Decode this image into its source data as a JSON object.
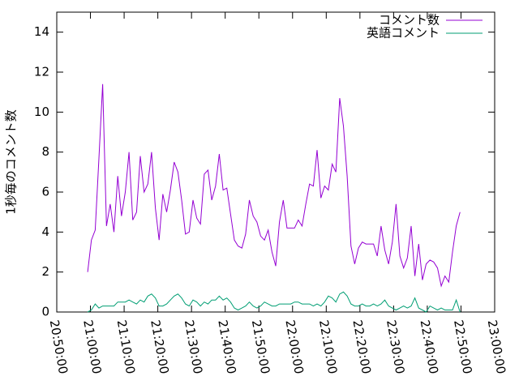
{
  "chart_data": {
    "type": "line",
    "y_label": "1秒毎のコメント数",
    "x": [
      "20:59:10",
      "21:00:17",
      "21:01:24",
      "21:02:31",
      "21:03:38",
      "21:04:45",
      "21:05:52",
      "21:06:59",
      "21:08:06",
      "21:09:13",
      "21:10:20",
      "21:11:27",
      "21:12:34",
      "21:13:41",
      "21:14:48",
      "21:15:55",
      "21:17:02",
      "21:18:09",
      "21:19:16",
      "21:20:23",
      "21:21:30",
      "21:22:37",
      "21:23:44",
      "21:24:51",
      "21:25:58",
      "21:27:05",
      "21:28:12",
      "21:29:19",
      "21:30:26",
      "21:31:33",
      "21:32:40",
      "21:33:47",
      "21:34:54",
      "21:36:01",
      "21:37:08",
      "21:38:15",
      "21:39:22",
      "21:40:29",
      "21:41:36",
      "21:42:43",
      "21:43:50",
      "21:44:57",
      "21:46:04",
      "21:47:11",
      "21:48:18",
      "21:49:25",
      "21:50:32",
      "21:51:39",
      "21:52:46",
      "21:53:53",
      "21:55:00",
      "21:56:07",
      "21:57:14",
      "21:58:21",
      "21:59:28",
      "22:00:35",
      "22:01:42",
      "22:02:49",
      "22:03:56",
      "22:05:03",
      "22:06:10",
      "22:07:17",
      "22:08:24",
      "22:09:31",
      "22:10:38",
      "22:11:45",
      "22:12:52",
      "22:13:59",
      "22:15:06",
      "22:16:13",
      "22:17:20",
      "22:18:27",
      "22:19:34",
      "22:20:41",
      "22:21:48",
      "22:22:55",
      "22:24:02",
      "22:25:09",
      "22:26:16",
      "22:27:23",
      "22:28:30",
      "22:29:37",
      "22:30:44",
      "22:31:51",
      "22:32:58",
      "22:34:05",
      "22:35:12",
      "22:36:19",
      "22:37:26",
      "22:38:33",
      "22:39:40",
      "22:40:47",
      "22:41:54",
      "22:43:01",
      "22:44:08",
      "22:45:15",
      "22:46:22",
      "22:47:29",
      "22:48:36",
      "22:49:43"
    ],
    "series": [
      {
        "name": "コメント数",
        "color": "#9400d3",
        "values": [
          2.0,
          3.6,
          4.1,
          7.7,
          11.4,
          4.3,
          5.4,
          4.0,
          6.8,
          4.8,
          6.0,
          8.0,
          4.6,
          5.0,
          7.8,
          6.0,
          6.4,
          8.0,
          5.2,
          3.6,
          5.9,
          5.0,
          6.1,
          7.5,
          7.0,
          5.6,
          3.9,
          4.0,
          5.6,
          4.7,
          4.4,
          6.9,
          7.1,
          5.6,
          6.3,
          7.9,
          6.1,
          6.2,
          4.9,
          3.6,
          3.3,
          3.2,
          3.9,
          5.6,
          4.8,
          4.5,
          3.8,
          3.6,
          4.1,
          3.0,
          2.3,
          4.5,
          5.6,
          4.2,
          4.2,
          4.2,
          4.6,
          4.3,
          5.4,
          6.4,
          6.3,
          8.1,
          5.7,
          6.3,
          6.1,
          7.4,
          7.0,
          10.7,
          9.3,
          6.8,
          3.3,
          2.4,
          3.2,
          3.5,
          3.4,
          3.4,
          3.4,
          2.8,
          4.3,
          3.1,
          2.4,
          3.5,
          5.4,
          2.8,
          2.2,
          2.7,
          4.3,
          1.8,
          3.4,
          1.6,
          2.4,
          2.6,
          2.5,
          2.2,
          1.3,
          1.8,
          1.5,
          3.0,
          4.3,
          5.0
        ]
      },
      {
        "name": "英語コメント",
        "color": "#009e73",
        "values": [
          0.0,
          0.1,
          0.4,
          0.2,
          0.3,
          0.3,
          0.3,
          0.3,
          0.5,
          0.5,
          0.5,
          0.6,
          0.5,
          0.4,
          0.6,
          0.5,
          0.8,
          0.9,
          0.7,
          0.3,
          0.3,
          0.4,
          0.6,
          0.8,
          0.9,
          0.7,
          0.4,
          0.3,
          0.6,
          0.5,
          0.3,
          0.5,
          0.4,
          0.6,
          0.6,
          0.8,
          0.6,
          0.7,
          0.5,
          0.2,
          0.1,
          0.2,
          0.3,
          0.5,
          0.3,
          0.2,
          0.3,
          0.5,
          0.4,
          0.3,
          0.3,
          0.4,
          0.4,
          0.4,
          0.4,
          0.5,
          0.5,
          0.4,
          0.4,
          0.4,
          0.3,
          0.4,
          0.3,
          0.5,
          0.8,
          0.7,
          0.5,
          0.9,
          1.0,
          0.8,
          0.4,
          0.3,
          0.3,
          0.4,
          0.3,
          0.3,
          0.4,
          0.3,
          0.4,
          0.6,
          0.3,
          0.2,
          0.1,
          0.2,
          0.3,
          0.2,
          0.3,
          0.7,
          0.2,
          0.1,
          0.0,
          0.3,
          0.2,
          0.1,
          0.2,
          0.1,
          0.1,
          0.1,
          0.6,
          0.0
        ]
      }
    ],
    "xlim": [
      "20:50:00",
      "23:00:00"
    ],
    "xticks": [
      "20:50:00",
      "21:00:00",
      "21:10:00",
      "21:20:00",
      "21:30:00",
      "21:40:00",
      "21:50:00",
      "22:00:00",
      "22:10:00",
      "22:20:00",
      "22:30:00",
      "22:40:00",
      "22:50:00",
      "23:00:00"
    ],
    "ylim": [
      0,
      15
    ],
    "yticks": [
      0,
      2,
      4,
      6,
      8,
      10,
      12,
      14
    ],
    "legend": "upper right"
  }
}
